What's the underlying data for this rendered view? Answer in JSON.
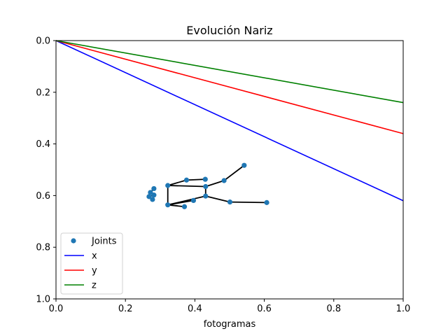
{
  "chart_data": {
    "type": "line",
    "title": "Evolución Nariz",
    "xlabel": "fotogramas",
    "ylabel": "",
    "xlim": [
      0,
      1
    ],
    "ylim": [
      0,
      1
    ],
    "y_inverted": true,
    "grid": false,
    "legend_position": "lower-left",
    "x_ticks": [
      "0.0",
      "0.2",
      "0.4",
      "0.6",
      "0.8",
      "1.0"
    ],
    "y_ticks": [
      "0.0",
      "0.2",
      "0.4",
      "0.6",
      "0.8",
      "1.0"
    ],
    "series": [
      {
        "name": "x",
        "color": "#0000ff",
        "x": [
          0,
          1
        ],
        "y": [
          0,
          0.62
        ]
      },
      {
        "name": "y",
        "color": "#ff0000",
        "x": [
          0,
          1
        ],
        "y": [
          0,
          0.36
        ]
      },
      {
        "name": "z",
        "color": "#008000",
        "x": [
          0,
          1
        ],
        "y": [
          0,
          0.24
        ]
      }
    ],
    "joints": {
      "name": "Joints",
      "color": "#1f77b4",
      "bone_color": "#000000",
      "points": [
        [
          0.542,
          0.483
        ],
        [
          0.484,
          0.542
        ],
        [
          0.43,
          0.537
        ],
        [
          0.376,
          0.54
        ],
        [
          0.431,
          0.565
        ],
        [
          0.322,
          0.561
        ],
        [
          0.322,
          0.636
        ],
        [
          0.431,
          0.602
        ],
        [
          0.501,
          0.625
        ],
        [
          0.607,
          0.627
        ],
        [
          0.396,
          0.619
        ],
        [
          0.37,
          0.643
        ],
        [
          0.282,
          0.573
        ],
        [
          0.272,
          0.588
        ],
        [
          0.282,
          0.598
        ],
        [
          0.268,
          0.604
        ],
        [
          0.278,
          0.615
        ]
      ],
      "bones": [
        [
          0,
          1
        ],
        [
          1,
          4
        ],
        [
          4,
          5
        ],
        [
          4,
          7
        ],
        [
          7,
          8
        ],
        [
          8,
          9
        ],
        [
          5,
          6
        ],
        [
          6,
          7
        ],
        [
          6,
          10
        ],
        [
          3,
          2
        ],
        [
          3,
          5
        ],
        [
          6,
          11
        ],
        [
          12,
          13
        ],
        [
          13,
          14
        ],
        [
          14,
          15
        ],
        [
          15,
          16
        ]
      ]
    }
  }
}
